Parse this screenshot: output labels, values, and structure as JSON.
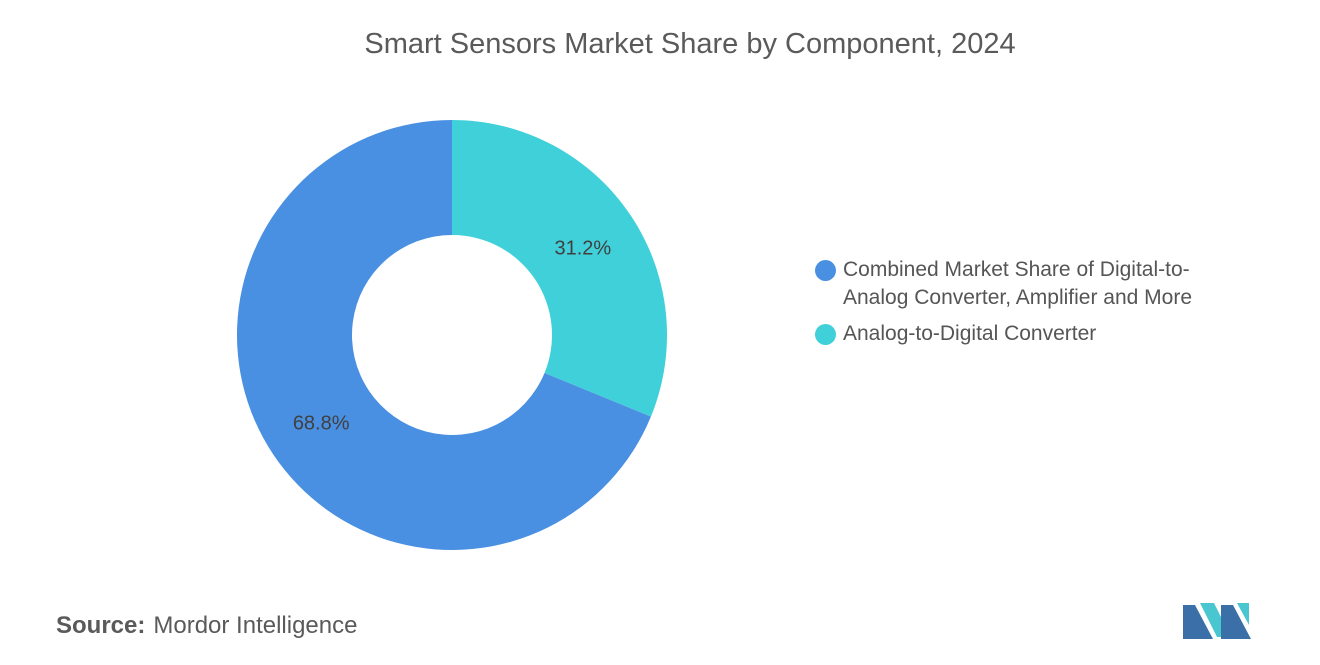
{
  "chart_data": {
    "type": "pie",
    "title": "Smart Sensors Market Share by Component, 2024",
    "categories": [
      "Analog-to-Digital Converter",
      "Combined Market Share of Digital-to-Analog Converter, Amplifier and More"
    ],
    "values": [
      31.2,
      68.8
    ],
    "value_labels": [
      "31.2%",
      "68.8%"
    ],
    "colors": [
      "#40D0DA",
      "#4A90E2"
    ],
    "legend": {
      "placement": "right",
      "entries": [
        {
          "label": "Combined Market Share of Digital-to-Analog Converter, Amplifier and More",
          "color": "#4A90E2"
        },
        {
          "label": "Analog-to-Digital Converter",
          "color": "#40D0DA"
        }
      ]
    }
  },
  "source": {
    "label": "Source:",
    "text": "Mordor Intelligence"
  },
  "logo": {
    "icon": "mordor-intelligence-logo-icon",
    "colors": [
      "#3A6FA8",
      "#49C6CF"
    ]
  }
}
